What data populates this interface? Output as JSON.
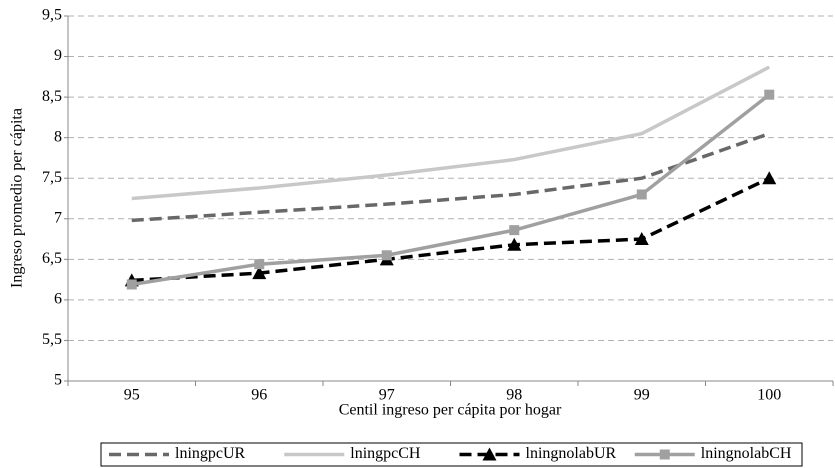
{
  "chart_data": {
    "type": "line",
    "x_label": "Centil ingreso per cápita por hogar",
    "y_label": "Ingreso promedio per cápita",
    "categories": [
      "95",
      "96",
      "97",
      "98",
      "99",
      "100"
    ],
    "series": [
      {
        "name": "lningpcUR",
        "color": "#686868",
        "dash": true,
        "marker": "none",
        "values": [
          6.98,
          7.08,
          7.18,
          7.3,
          7.5,
          8.05
        ]
      },
      {
        "name": "lningpcCH",
        "color": "#c8c8c8",
        "dash": false,
        "marker": "none",
        "values": [
          7.25,
          7.38,
          7.54,
          7.73,
          8.05,
          8.87
        ]
      },
      {
        "name": "lningnolabUR",
        "color": "#000000",
        "dash": true,
        "marker": "triangle",
        "values": [
          6.24,
          6.33,
          6.5,
          6.68,
          6.75,
          7.5
        ]
      },
      {
        "name": "lningnolabCH",
        "color": "#a0a0a0",
        "dash": false,
        "marker": "square",
        "values": [
          6.19,
          6.44,
          6.55,
          6.86,
          7.3,
          8.53
        ]
      }
    ],
    "ylim": [
      5,
      9.5
    ],
    "yticks": [
      5,
      {
        "value": 5.5,
        "label": "5,5"
      },
      6,
      {
        "value": 6.5,
        "label": "6,5"
      },
      7,
      {
        "value": 7.5,
        "label": "7,5"
      },
      8,
      {
        "value": 8.5,
        "label": "8,5"
      },
      9,
      {
        "value": 9.5,
        "label": "9,5"
      }
    ],
    "grid": true,
    "legend": "bottom"
  }
}
